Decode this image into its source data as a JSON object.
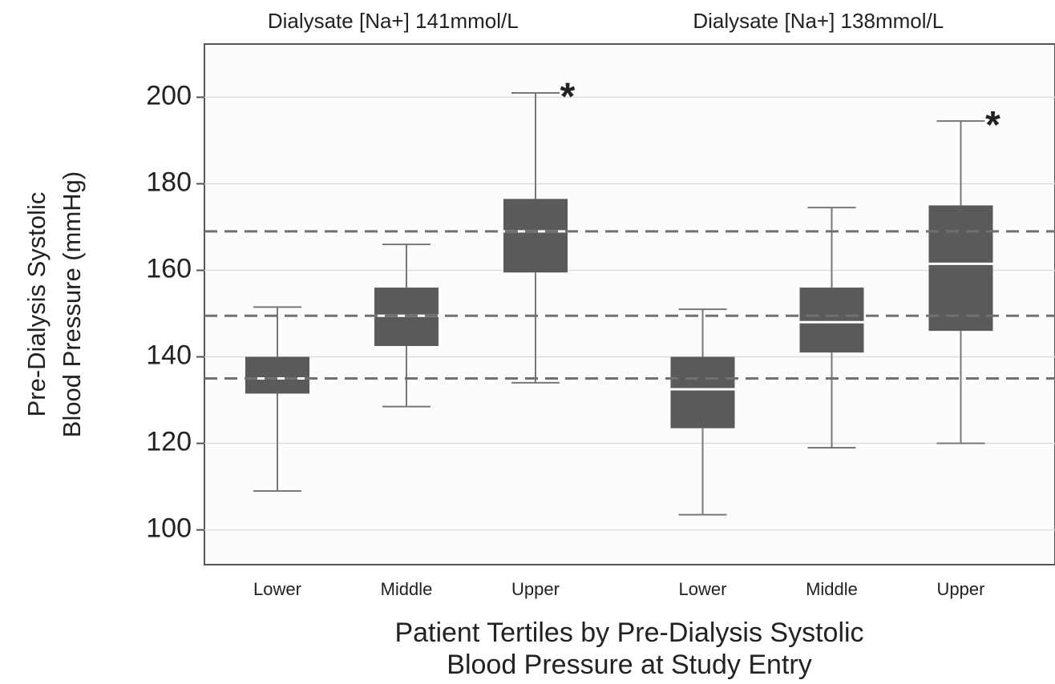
{
  "chart_data": {
    "type": "box",
    "y_label": [
      "Pre-Dialysis Systolic",
      "Blood Pressure (mmHg)"
    ],
    "x_label": [
      "Patient Tertiles by Pre-Dialysis Systolic",
      "Blood Pressure at Study Entry"
    ],
    "ylim": [
      94,
      211
    ],
    "yticks": [
      100,
      120,
      140,
      160,
      180,
      200
    ],
    "grid": true,
    "reference_lines": [
      169,
      149.5,
      135
    ],
    "box_color": "#5a5a5a",
    "whisker_color": "#777777",
    "median_color": "#ffffff",
    "reference_color": "#707070",
    "groups": [
      {
        "title": "Dialysate [Na+] 141mmol/L",
        "categories": [
          "Lower",
          "Middle",
          "Upper"
        ],
        "boxes": [
          {
            "whislo": 109,
            "q1": 131.5,
            "med": 135,
            "q3": 140,
            "whishi": 151.5
          },
          {
            "whislo": 128.5,
            "q1": 142.5,
            "med": 149.5,
            "q3": 156,
            "whishi": 166
          },
          {
            "whislo": 134,
            "q1": 159.5,
            "med": 169,
            "q3": 176.5,
            "whishi": 201,
            "label": "*"
          }
        ]
      },
      {
        "title": "Dialysate [Na+] 138mmol/L",
        "categories": [
          "Lower",
          "Middle",
          "Upper"
        ],
        "boxes": [
          {
            "whislo": 103.5,
            "q1": 123.5,
            "med": 132.5,
            "q3": 140,
            "whishi": 151
          },
          {
            "whislo": 119,
            "q1": 141,
            "med": 148,
            "q3": 156,
            "whishi": 174.5
          },
          {
            "whislo": 120,
            "q1": 146,
            "med": 161.5,
            "q3": 175,
            "whishi": 194.5,
            "label": "*"
          }
        ]
      }
    ]
  }
}
